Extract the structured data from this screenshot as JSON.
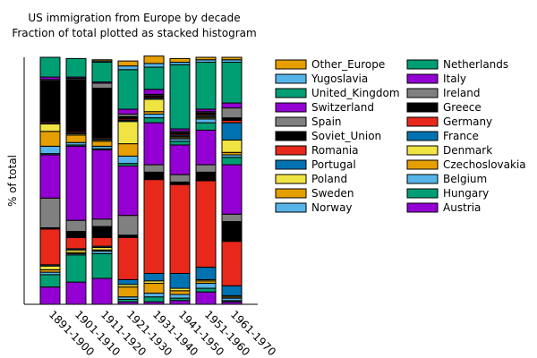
{
  "chart_data": {
    "type": "stacked_bar",
    "title": "US immigration from Europe by decade",
    "subtitle": "Fraction of total plotted as stacked histogram",
    "y_label": "% of total",
    "categories": [
      "1891-1900",
      "1901-1910",
      "1911-1920",
      "1921-1930",
      "1931-1940",
      "1941-1950",
      "1951-1960",
      "1961-1970"
    ],
    "ylim": [
      0,
      1
    ],
    "series": [
      {
        "name": "Austria",
        "color": "#9400d3",
        "values": [
          0.07,
          0.09,
          0.105,
          0.01,
          0.01,
          0.015,
          0.05,
          0.01
        ]
      },
      {
        "name": "Hungary",
        "color": "#009e73",
        "values": [
          0.05,
          0.11,
          0.1,
          0.01,
          0.02,
          0.01,
          0.015,
          0.005
        ]
      },
      {
        "name": "Belgium",
        "color": "#56b4e9",
        "values": [
          0.01,
          0.005,
          0.01,
          0.01,
          0.015,
          0.015,
          0.02,
          0.01
        ]
      },
      {
        "name": "Czechoslovakia",
        "color": "#e69f00",
        "values": [
          0.01,
          0.005,
          0.005,
          0.04,
          0.04,
          0.015,
          0.01,
          0.005
        ]
      },
      {
        "name": "Denmark",
        "color": "#f0e442",
        "values": [
          0.015,
          0.01,
          0.01,
          0.01,
          0.01,
          0.01,
          0.005,
          0.005
        ]
      },
      {
        "name": "France",
        "color": "#0072b2",
        "values": [
          0.005,
          0.005,
          0.005,
          0.02,
          0.03,
          0.06,
          0.05,
          0.04
        ]
      },
      {
        "name": "Germany",
        "color": "#e8281a",
        "values": [
          0.145,
          0.045,
          0.035,
          0.17,
          0.38,
          0.36,
          0.35,
          0.18
        ]
      },
      {
        "name": "Greece",
        "color": "#000000",
        "values": [
          0.005,
          0.025,
          0.045,
          0.01,
          0.03,
          0.01,
          0.035,
          0.08
        ]
      },
      {
        "name": "Ireland",
        "color": "#808080",
        "values": [
          0.12,
          0.045,
          0.03,
          0.08,
          0.03,
          0.03,
          0.03,
          0.03
        ]
      },
      {
        "name": "Italy",
        "color": "#9400d3",
        "values": [
          0.175,
          0.3,
          0.28,
          0.2,
          0.17,
          0.12,
          0.14,
          0.2
        ]
      },
      {
        "name": "Netherlands",
        "color": "#009e73",
        "values": [
          0.005,
          0.005,
          0.005,
          0.01,
          0.02,
          0.015,
          0.03,
          0.03
        ]
      },
      {
        "name": "Norway",
        "color": "#56b4e9",
        "values": [
          0.03,
          0.01,
          0.01,
          0.03,
          0.015,
          0.01,
          0.015,
          0.01
        ]
      },
      {
        "name": "Sweden",
        "color": "#e69f00",
        "values": [
          0.06,
          0.03,
          0.02,
          0.05,
          0.01,
          0.005,
          0.005,
          0.01
        ]
      },
      {
        "name": "Poland",
        "color": "#f0e442",
        "values": [
          0.03,
          0.005,
          0.005,
          0.09,
          0.05,
          0.005,
          0.005,
          0.05
        ]
      },
      {
        "name": "Portugal",
        "color": "#0072b2",
        "values": [
          0.005,
          0.005,
          0.005,
          0.005,
          0.005,
          0.005,
          0.005,
          0.07
        ]
      },
      {
        "name": "Romania",
        "color": "#e8281a",
        "values": [
          0.005,
          0.005,
          0.005,
          0.005,
          0.005,
          0.005,
          0.005,
          0.01
        ]
      },
      {
        "name": "Soviet_Union",
        "color": "#000000",
        "values": [
          0.165,
          0.21,
          0.2,
          0.01,
          0.005,
          0.005,
          0.005,
          0.01
        ]
      },
      {
        "name": "Spain",
        "color": "#808080",
        "values": [
          0.005,
          0.005,
          0.02,
          0.01,
          0.005,
          0.005,
          0.005,
          0.04
        ]
      },
      {
        "name": "Switzerland",
        "color": "#9400d3",
        "values": [
          0.01,
          0.005,
          0.005,
          0.02,
          0.02,
          0.01,
          0.01,
          0.02
        ]
      },
      {
        "name": "United_Kingdom",
        "color": "#009e73",
        "values": [
          0.08,
          0.075,
          0.08,
          0.16,
          0.09,
          0.26,
          0.19,
          0.165
        ]
      },
      {
        "name": "Yugoslavia",
        "color": "#56b4e9",
        "values": [
          0,
          0,
          0.005,
          0.015,
          0.015,
          0.01,
          0.01,
          0.01
        ]
      },
      {
        "name": "Other_Europe",
        "color": "#e69f00",
        "values": [
          0,
          0,
          0.005,
          0.02,
          0.03,
          0.015,
          0.01,
          0.01
        ]
      }
    ]
  }
}
